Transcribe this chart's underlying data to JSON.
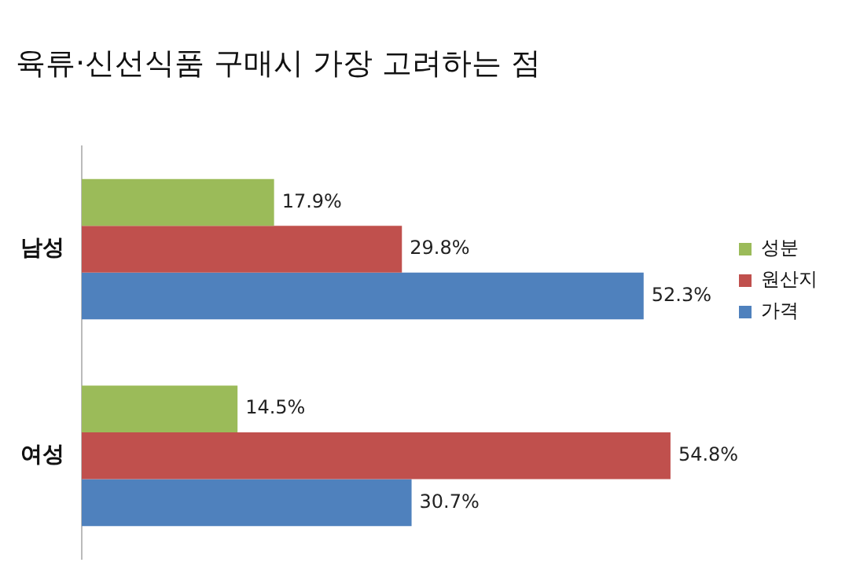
{
  "chart_data": {
    "type": "bar",
    "orientation": "horizontal",
    "title": "육류·신선식품 구매시 가장 고려하는 점",
    "relative": false,
    "categories": [
      "남성",
      "여성"
    ],
    "series": [
      {
        "name": "성분",
        "color": "#9bbb59",
        "values": [
          17.9,
          14.5
        ],
        "value_labels": [
          "17.9%",
          "14.5%"
        ]
      },
      {
        "name": "원산지",
        "color": "#c0504d",
        "values": [
          29.8,
          54.8
        ],
        "value_labels": [
          "29.8%",
          "54.8%"
        ]
      },
      {
        "name": "가격",
        "color": "#4f81bd",
        "values": [
          52.3,
          30.7
        ],
        "value_labels": [
          "52.3%",
          "30.7%"
        ]
      }
    ],
    "legend": "right",
    "grid": false,
    "tick_labels": "y"
  }
}
